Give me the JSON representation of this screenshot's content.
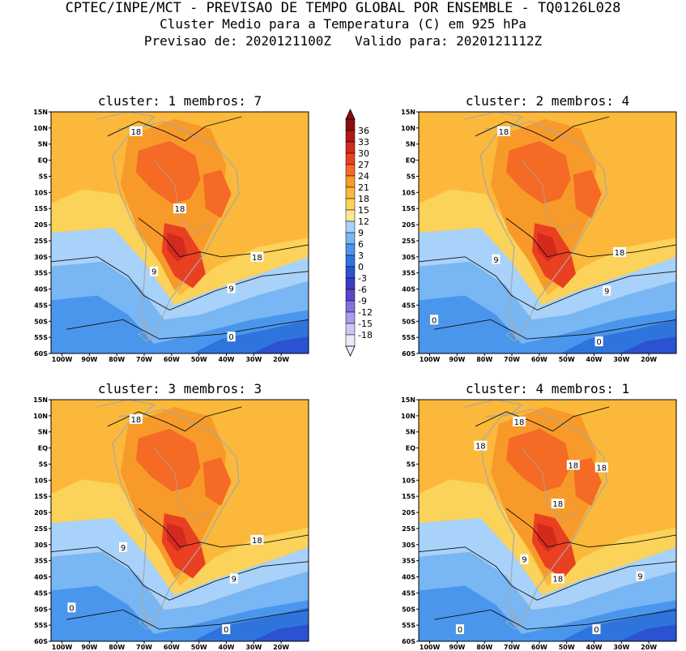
{
  "header": {
    "line1": "CPTEC/INPE/MCT - PREVISAO DE TEMPO GLOBAL POR ENSEMBLE - TQ0126L028",
    "line2": "Cluster Medio para a Temperatura (C) em 925 hPa",
    "line3": "Previsao de: 2020121100Z   Valido para: 2020121112Z"
  },
  "lat_ticks": [
    "15N",
    "10N",
    "5N",
    "EQ",
    "5S",
    "10S",
    "15S",
    "20S",
    "25S",
    "30S",
    "35S",
    "40S",
    "45S",
    "50S",
    "55S",
    "60S"
  ],
  "lon_ticks": [
    "100W",
    "90W",
    "80W",
    "70W",
    "60W",
    "50W",
    "40W",
    "30W",
    "20W"
  ],
  "colorbar": {
    "labels": [
      "36",
      "33",
      "30",
      "27",
      "24",
      "21",
      "18",
      "15",
      "12",
      "9",
      "6",
      "3",
      "0",
      "-3",
      "-6",
      "-9",
      "-12",
      "-15",
      "-18"
    ],
    "colors": [
      "#8a1010",
      "#b01818",
      "#d42a1e",
      "#ea4022",
      "#f56a24",
      "#f79a2a",
      "#fbb83a",
      "#fbd25a",
      "#fde890",
      "#a8d2fa",
      "#78b6f4",
      "#4a96ec",
      "#2e74dc",
      "#2a52d2",
      "#3a3cc2",
      "#5a48cc",
      "#8470e0",
      "#ac9aee",
      "#d2c6f8",
      "#f0e8fc"
    ]
  },
  "panels": [
    {
      "title": "cluster: 1   membros: 7",
      "labels": [
        "18",
        "18",
        "18",
        "9",
        "9",
        "0"
      ]
    },
    {
      "title": "cluster: 2   membros: 4",
      "labels": [
        "18",
        "18",
        "9",
        "9",
        "0",
        "0"
      ]
    },
    {
      "title": "cluster: 3   membros: 3",
      "labels": [
        "18",
        "18",
        "9",
        "9",
        "0",
        "0"
      ]
    },
    {
      "title": "cluster: 4   membros: 1",
      "labels": [
        "18",
        "18",
        "18",
        "18",
        "18",
        "18",
        "9",
        "9",
        "0",
        "0"
      ]
    }
  ]
}
